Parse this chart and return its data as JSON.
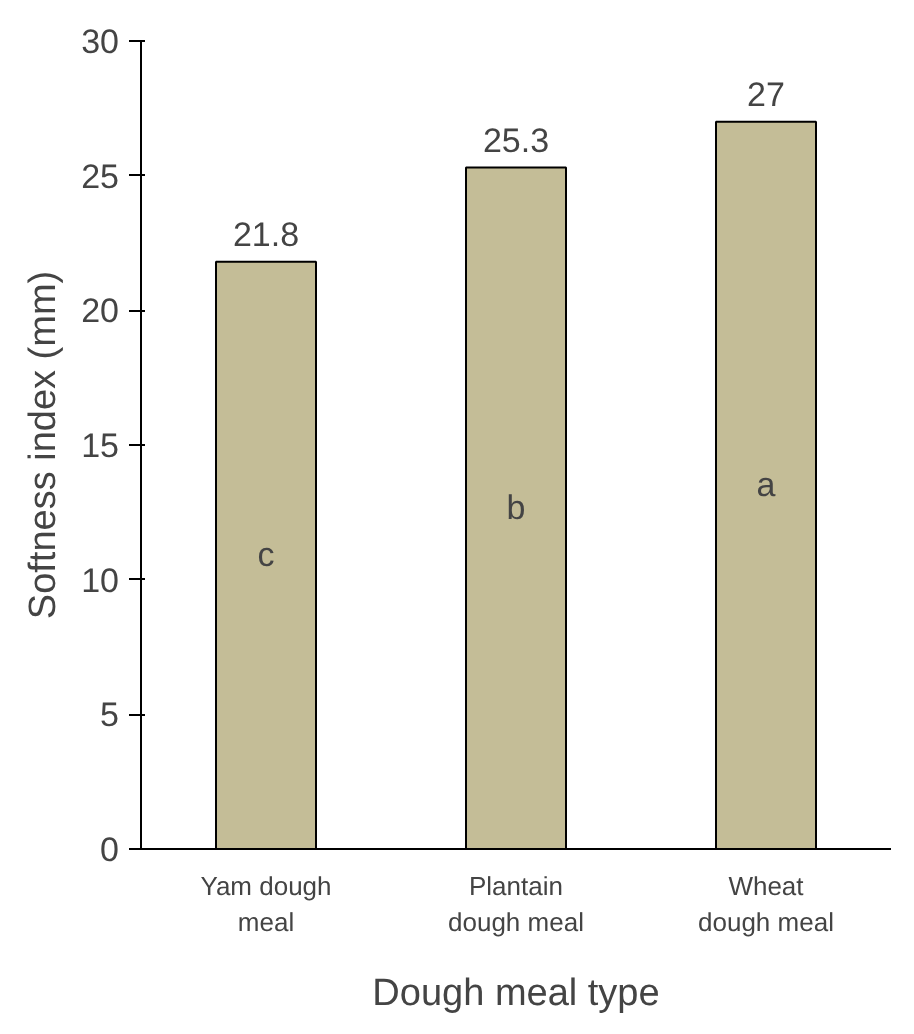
{
  "chart_data": {
    "type": "bar",
    "xlabel": "Dough meal type",
    "ylabel": "Softness index (mm)",
    "categories": [
      "Yam dough meal",
      "Plantain dough meal",
      "Wheat dough meal"
    ],
    "values": [
      21.8,
      25.3,
      27
    ],
    "color": "#c4bd97",
    "ylim": [
      0,
      30
    ],
    "yticks": [
      0,
      5,
      10,
      15,
      20,
      25,
      30
    ],
    "data_labels": true,
    "grid": false,
    "annotations": [
      "c",
      "b",
      "a"
    ]
  }
}
